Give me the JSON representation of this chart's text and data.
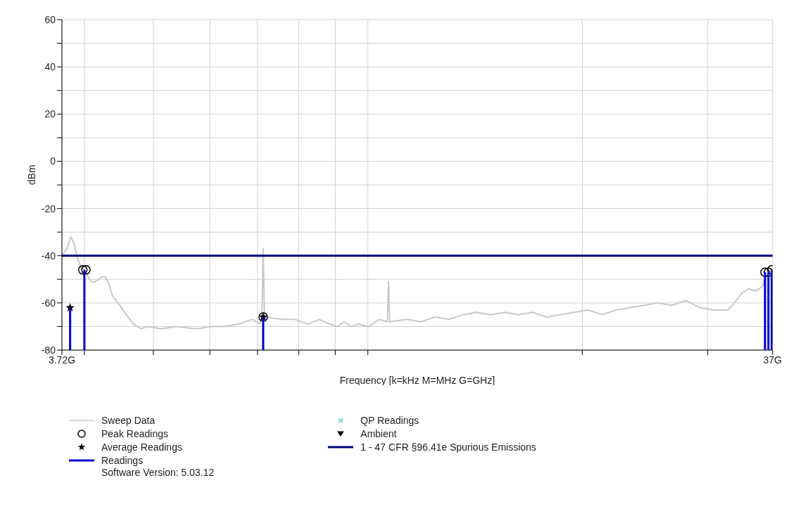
{
  "chart_data": {
    "type": "line",
    "xlabel": "Frequency [k=kHz M=MHz G=GHz]",
    "ylabel": "dBm",
    "log": "x",
    "grid": true,
    "legend": "bottom",
    "xlim": [
      3.72,
      37
    ],
    "xticks": [
      {
        "value": 3.72,
        "label": "3.72G"
      },
      {
        "value": 4,
        "label": null
      },
      {
        "value": 5,
        "label": null
      },
      {
        "value": 6,
        "label": null
      },
      {
        "value": 7,
        "label": null
      },
      {
        "value": 8,
        "label": null
      },
      {
        "value": 9,
        "label": null
      },
      {
        "value": 10,
        "label": null
      },
      {
        "value": 20,
        "label": null
      },
      {
        "value": 30,
        "label": null
      },
      {
        "value": 37,
        "label": "37G"
      }
    ],
    "ylim": [
      -80,
      60
    ],
    "yticks": [
      -80,
      {
        "value": -70,
        "label": null
      },
      -60,
      {
        "value": -50,
        "label": null
      },
      -40,
      {
        "value": -30,
        "label": null
      },
      -20,
      {
        "value": -10,
        "label": null
      },
      0,
      {
        "value": 10,
        "label": null
      },
      20,
      {
        "value": 30,
        "label": null
      },
      40,
      {
        "value": 50,
        "label": null
      },
      60
    ],
    "annotations": [
      "Software Version: 5.03.12"
    ],
    "series": [
      {
        "name": "Sweep Data",
        "color": "#c8c8c8",
        "marker": "none",
        "x": [
          3.72,
          3.78,
          3.83,
          3.87,
          3.91,
          3.96,
          4.0,
          4.05,
          4.09,
          4.14,
          4.19,
          4.23,
          4.28,
          4.33,
          4.38,
          4.46,
          4.58,
          4.69,
          4.8,
          4.91,
          5.13,
          5.37,
          5.75,
          6.02,
          6.29,
          6.58,
          6.89,
          7.05,
          7.1,
          7.13,
          7.16,
          7.21,
          7.54,
          7.89,
          8.25,
          8.55,
          8.85,
          9.06,
          9.26,
          9.48,
          9.69,
          10.03,
          10.37,
          10.65,
          10.69,
          10.73,
          11.36,
          11.88,
          12.42,
          13.0,
          13.6,
          14.22,
          14.88,
          15.56,
          16.28,
          17.03,
          17.82,
          18.64,
          19.49,
          20.39,
          21.33,
          22.32,
          23.34,
          24.42,
          25.54,
          26.72,
          27.95,
          29.24,
          30.58,
          31.99,
          32.72,
          33.47,
          34.23,
          35.01,
          35.82,
          36.0
        ],
        "values": [
          -40,
          -37,
          -32,
          -35,
          -41,
          -45,
          -46,
          -49,
          -51,
          -51,
          -50,
          -49,
          -49,
          -52,
          -57,
          -60,
          -65,
          -69,
          -71,
          -70,
          -71,
          -70,
          -71,
          -70,
          -70,
          -69,
          -67,
          -69,
          -66,
          -37,
          -66,
          -66,
          -67,
          -67,
          -69,
          -67,
          -69,
          -70,
          -68,
          -70,
          -69,
          -70,
          -67,
          -68,
          -51,
          -68,
          -67,
          -68,
          -66,
          -67,
          -65,
          -64,
          -65,
          -64,
          -65,
          -64,
          -66,
          -65,
          -64,
          -63,
          -65,
          -63,
          -62,
          -61,
          -60,
          -61,
          -59,
          -62,
          -63,
          -63,
          -60,
          -56,
          -54,
          -55,
          -53,
          -50
        ]
      },
      {
        "name": "Peak Readings",
        "type": "scatter",
        "color": "#000000",
        "marker": "circle",
        "x": [
          3.98,
          4.02,
          7.13,
          36.1,
          36.5,
          36.9
        ],
        "values": [
          -46,
          -46,
          -66,
          -47,
          -47,
          -46
        ]
      },
      {
        "name": "Average Readings",
        "type": "scatter",
        "color": "#000000",
        "marker": "star",
        "x": [
          3.82,
          7.13
        ],
        "values": [
          -62,
          -66
        ]
      },
      {
        "name": "Readings",
        "type": "bar",
        "color": "#0000cc",
        "x": [
          3.82,
          4.0,
          7.13,
          36.1,
          36.5,
          36.9
        ],
        "values": [
          18,
          34,
          14,
          33,
          33,
          34
        ],
        "base": [
          -80,
          -80,
          -80,
          -80,
          -80,
          -80
        ]
      },
      {
        "name": "QP Readings",
        "type": "scatter",
        "color": "#66cccc",
        "marker": "cross"
      },
      {
        "name": "Ambient",
        "type": "scatter",
        "color": "#000000",
        "marker": "triangle"
      },
      {
        "name": "1 - 47 CFR §96.41e Spurious Emissions",
        "color": "#000080",
        "marker": "none",
        "x": [
          3.72,
          37
        ],
        "values": [
          -40,
          -40
        ]
      }
    ]
  }
}
